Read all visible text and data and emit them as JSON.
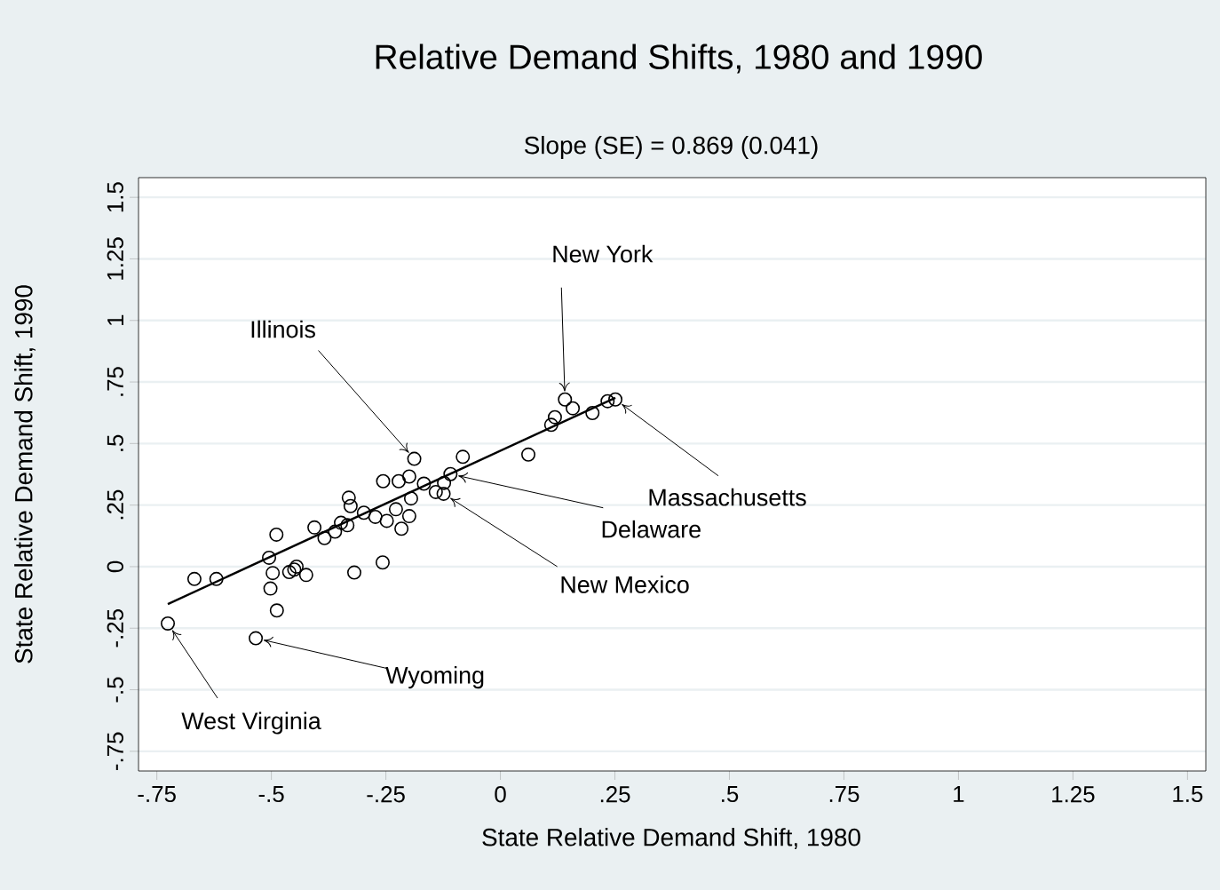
{
  "chart_data": {
    "type": "scatter",
    "title": "Relative Demand Shifts, 1980 and 1990",
    "subtitle": "Slope (SE) = 0.869 (0.041)",
    "xlabel": "State Relative Demand Shift, 1980",
    "ylabel": "State Relative Demand Shift, 1990",
    "xlim": [
      -0.79,
      1.54
    ],
    "ylim": [
      -0.83,
      1.58
    ],
    "xticks": [
      {
        "value": -0.75,
        "label": "-.75"
      },
      {
        "value": -0.5,
        "label": "-.5"
      },
      {
        "value": -0.25,
        "label": "-.25"
      },
      0,
      {
        "value": 0.25,
        "label": ".25"
      },
      {
        "value": 0.5,
        "label": ".5"
      },
      {
        "value": 0.75,
        "label": ".75"
      },
      1,
      {
        "value": 1.25,
        "label": "1.25"
      },
      {
        "value": 1.5,
        "label": "1.5"
      }
    ],
    "yticks": [
      {
        "value": -0.75,
        "label": "-.75"
      },
      {
        "value": -0.5,
        "label": "-.5"
      },
      {
        "value": -0.25,
        "label": "-.25"
      },
      0,
      {
        "value": 0.25,
        "label": ".25"
      },
      {
        "value": 0.5,
        "label": ".5"
      },
      {
        "value": 0.75,
        "label": ".75"
      },
      1,
      {
        "value": 1.25,
        "label": "1.25"
      },
      {
        "value": 1.5,
        "label": "1.5"
      }
    ],
    "grid": "y",
    "marker": "circle",
    "series": [
      {
        "color": "#000000",
        "x": [
          -0.726,
          -0.668,
          -0.62,
          -0.534,
          -0.505,
          -0.489,
          -0.497,
          -0.502,
          -0.488,
          -0.461,
          -0.445,
          -0.45,
          -0.424,
          -0.406,
          -0.384,
          -0.361,
          -0.348,
          -0.331,
          -0.327,
          -0.334,
          -0.319,
          -0.298,
          -0.273,
          -0.256,
          -0.248,
          -0.257,
          -0.228,
          -0.222,
          -0.216,
          -0.199,
          -0.195,
          -0.199,
          -0.188,
          -0.167,
          -0.141,
          -0.123,
          -0.124,
          -0.109,
          -0.082,
          0.061,
          0.141,
          0.158,
          0.119,
          0.111,
          0.201,
          0.234,
          0.251
        ],
        "values": [
          -0.231,
          -0.05,
          -0.05,
          -0.291,
          0.036,
          0.13,
          -0.026,
          -0.089,
          -0.178,
          -0.022,
          0,
          -0.012,
          -0.034,
          0.159,
          0.116,
          0.142,
          0.178,
          0.28,
          0.246,
          0.168,
          -0.024,
          0.219,
          0.202,
          0.347,
          0.186,
          0.017,
          0.233,
          0.347,
          0.154,
          0.366,
          0.277,
          0.205,
          0.438,
          0.337,
          0.303,
          0.34,
          0.296,
          0.376,
          0.446,
          0.455,
          0.679,
          0.643,
          0.607,
          0.576,
          0.624,
          0.672,
          0.679
        ]
      },
      {
        "type": "line",
        "color": "#000000",
        "marker": "none",
        "x": [
          -0.726,
          0.251
        ],
        "values": [
          -0.152,
          0.686
        ]
      }
    ],
    "annotations": [
      {
        "text": "New York",
        "x": 0.141,
        "y": 0.679
      },
      {
        "text": "Illinois",
        "x": -0.188,
        "y": 0.438
      },
      {
        "text": "Massachusetts",
        "x": 0.251,
        "y": 0.679
      },
      {
        "text": "Delaware",
        "x": -0.109,
        "y": 0.376
      },
      {
        "text": "New Mexico",
        "x": -0.124,
        "y": 0.296
      },
      {
        "text": "Wyoming",
        "x": -0.534,
        "y": -0.291
      },
      {
        "text": "West Virginia",
        "x": -0.726,
        "y": -0.231
      }
    ]
  }
}
